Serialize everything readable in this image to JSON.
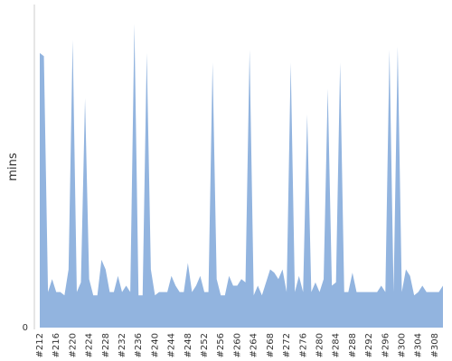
{
  "chart_data": {
    "type": "area",
    "y_label": "mins",
    "color": "#92b4df",
    "categories": [
      "#212",
      null,
      null,
      null,
      "#216",
      null,
      null,
      null,
      "#220",
      null,
      null,
      null,
      "#224",
      null,
      null,
      null,
      "#228",
      null,
      null,
      null,
      "#232",
      null,
      null,
      null,
      "#236",
      null,
      null,
      null,
      "#240",
      null,
      null,
      null,
      "#244",
      null,
      null,
      null,
      "#248",
      null,
      null,
      null,
      "#252",
      null,
      null,
      null,
      "#256",
      null,
      null,
      null,
      "#260",
      null,
      null,
      null,
      "#264",
      null,
      null,
      null,
      "#268",
      null,
      null,
      null,
      "#272",
      null,
      null,
      null,
      "#276",
      null,
      null,
      null,
      "#280",
      null,
      null,
      null,
      "#284",
      null,
      null,
      null,
      "#288",
      null,
      null,
      null,
      "#292",
      null,
      null,
      null,
      "#296",
      null,
      null,
      null,
      "#300",
      null,
      null,
      null,
      "#304",
      null,
      null,
      null,
      "#308",
      null,
      null
    ],
    "values": [
      85,
      84,
      11,
      15,
      11,
      11,
      10,
      18,
      89,
      11,
      14,
      71,
      15,
      10,
      10,
      21,
      18,
      11,
      11,
      16,
      11,
      13,
      11,
      94,
      10,
      10,
      85,
      18,
      10,
      11,
      11,
      11,
      16,
      13,
      11,
      11,
      20,
      11,
      13,
      16,
      11,
      11,
      82,
      15,
      10,
      10,
      16,
      13,
      13,
      15,
      14,
      86,
      10,
      13,
      10,
      14,
      18,
      17,
      15,
      18,
      11,
      82,
      11,
      16,
      11,
      66,
      11,
      14,
      11,
      15,
      74,
      13,
      14,
      82,
      11,
      11,
      17,
      11,
      11,
      11,
      11,
      11,
      11,
      13,
      11,
      86,
      11,
      87,
      11,
      18,
      16,
      10,
      11,
      13,
      11,
      11,
      11,
      11,
      13
    ],
    "ylim": [
      0,
      100
    ],
    "yticks": [
      0
    ],
    "grid": false
  }
}
